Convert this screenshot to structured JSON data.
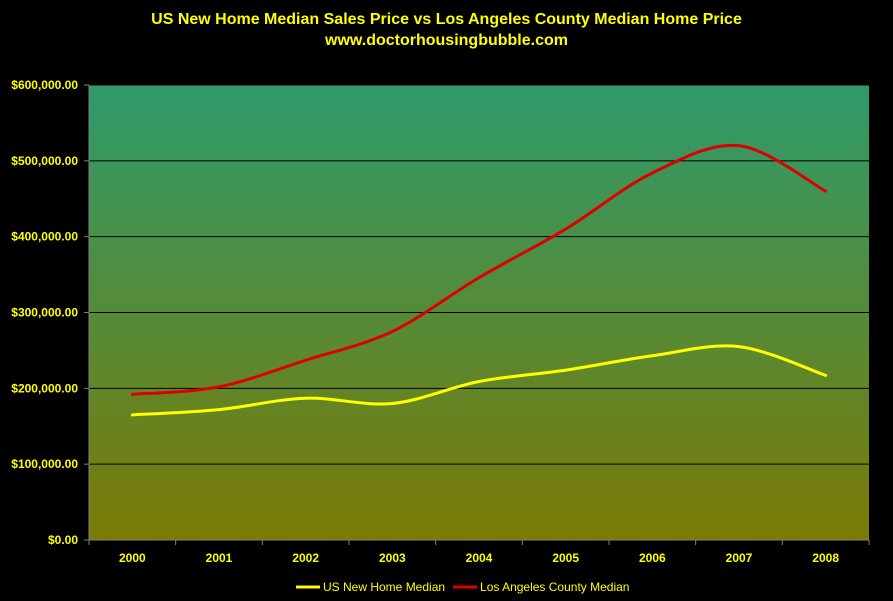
{
  "chart_data": {
    "type": "line",
    "title": "US New Home Median Sales Price vs Los Angeles County Median Home Price",
    "subtitle": "www.doctorhousingbubble.com",
    "categories": [
      "2000",
      "2001",
      "2002",
      "2003",
      "2004",
      "2005",
      "2006",
      "2007",
      "2008"
    ],
    "series": [
      {
        "name": "US New Home Median",
        "color": "#ffff00",
        "values": [
          165000,
          172000,
          187000,
          180000,
          209000,
          224000,
          243000,
          255000,
          217000
        ]
      },
      {
        "name": "Los Angeles County Median",
        "color": "#dd0000",
        "values": [
          192000,
          202000,
          237000,
          275000,
          346000,
          410000,
          484000,
          520000,
          460000
        ]
      }
    ],
    "ylim": [
      0,
      600000
    ],
    "yticks": [
      {
        "value": 0,
        "label": "$0.00"
      },
      {
        "value": 100000,
        "label": "$100,000.00"
      },
      {
        "value": 200000,
        "label": "$200,000.00"
      },
      {
        "value": 300000,
        "label": "$300,000.00"
      },
      {
        "value": 400000,
        "label": "$400,000.00"
      },
      {
        "value": 500000,
        "label": "$500,000.00"
      },
      {
        "value": 600000,
        "label": "$600,000.00"
      }
    ],
    "grid": true,
    "legend": "bottom",
    "colors": {
      "background": "#000000",
      "plot_top": "#2e9b6c",
      "plot_bottom": "#7c7a04",
      "text": "#ffff00",
      "grid": "#000000"
    }
  }
}
